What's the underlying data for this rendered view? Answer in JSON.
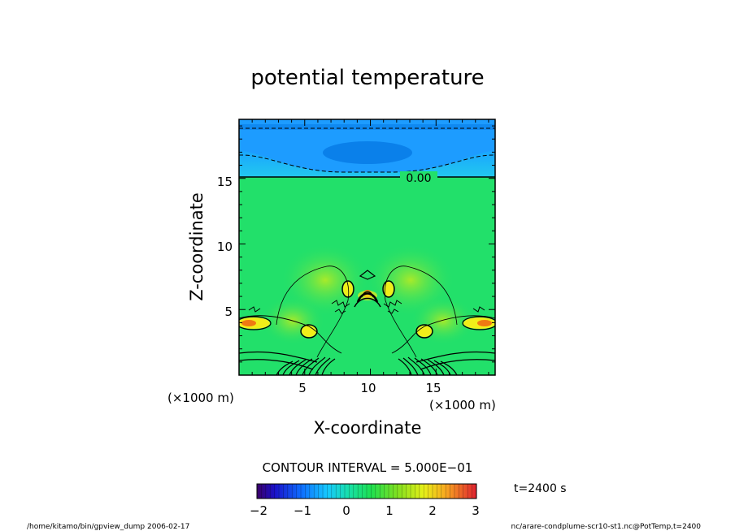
{
  "chart_data": {
    "type": "heatmap",
    "title": "potential temperature",
    "xlabel": "X-coordinate",
    "ylabel": "Z-coordinate",
    "x_unit": "(×1000 m)",
    "y_unit": "(×1000 m)",
    "xlim": [
      0,
      19.5
    ],
    "ylim": [
      0,
      19.5
    ],
    "x_ticks": [
      "5",
      "10",
      "15"
    ],
    "y_ticks": [
      "5",
      "10",
      "15"
    ],
    "contour_label": "0.00",
    "contour_interval_text": "CONTOUR INTERVAL = 5.000E−01",
    "time_text": "t=2400 s",
    "colorbar": {
      "min": -2,
      "max": 3,
      "tick_labels": [
        "−2",
        "−1",
        "0",
        "1",
        "2",
        "3"
      ]
    },
    "colors": {
      "background_field": "#22e06a",
      "upper_layer": "#16a7ff",
      "upper_core": "#0b84ee",
      "warm_anomaly": "#f0ee1a",
      "hot_anomaly": "#f07a12"
    }
  },
  "footer": {
    "left": "/home/kitamo/bin/gpview_dump  2006-02-17",
    "right": "nc/arare-condplume-scr10-st1.nc@PotTemp,t=2400"
  }
}
